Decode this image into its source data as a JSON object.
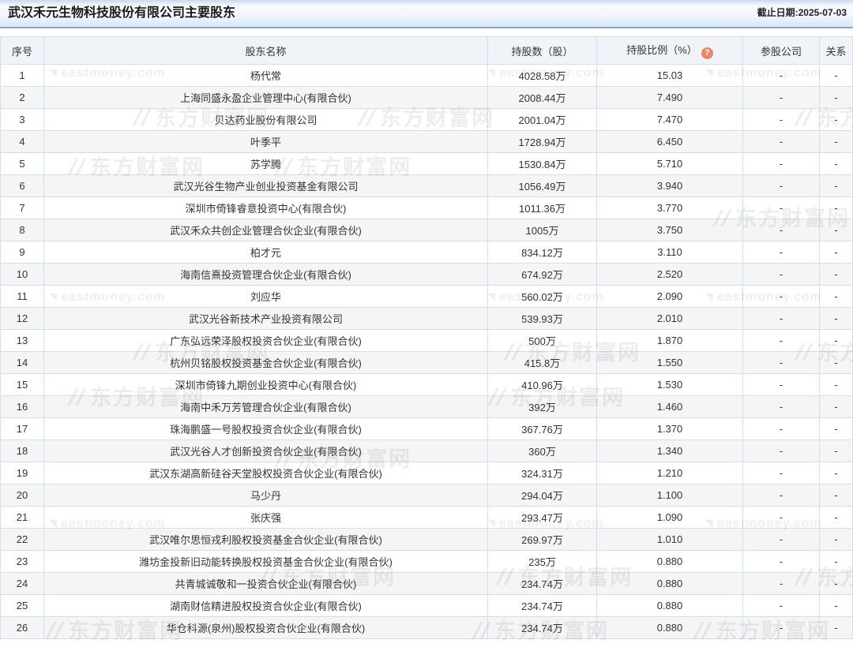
{
  "page": {
    "title": "武汉禾元生物科技股份有限公司主要股东",
    "as_of": "截止日期:2025-07-03"
  },
  "watermark": {
    "brand_en": "eastmoney.com",
    "brand_cn": "东方财富网"
  },
  "colors": {
    "title_border": "#84a7ca",
    "table_border": "#cfe1f0",
    "header_bg": "#f0f4f8",
    "row_alt_bg": "#f5f5f5",
    "help_icon": "#ef8460"
  },
  "help_icon": {
    "glyph": "?"
  },
  "table": {
    "columns": [
      {
        "key": "index",
        "label": "序号"
      },
      {
        "key": "name",
        "label": "股东名称"
      },
      {
        "key": "shares",
        "label": "持股数（股）"
      },
      {
        "key": "ratio",
        "label": "持股比例（%）",
        "has_help": true
      },
      {
        "key": "company",
        "label": "参股公司"
      },
      {
        "key": "relation",
        "label": "关系"
      }
    ],
    "rows": [
      {
        "index": "1",
        "name": "杨代常",
        "shares": "4028.58万",
        "ratio": "15.03",
        "company": "-",
        "relation": "-"
      },
      {
        "index": "2",
        "name": "上海同盛永盈企业管理中心(有限合伙)",
        "shares": "2008.44万",
        "ratio": "7.490",
        "company": "-",
        "relation": "-"
      },
      {
        "index": "3",
        "name": "贝达药业股份有限公司",
        "shares": "2001.04万",
        "ratio": "7.470",
        "company": "-",
        "relation": "-"
      },
      {
        "index": "4",
        "name": "叶季平",
        "shares": "1728.94万",
        "ratio": "6.450",
        "company": "-",
        "relation": "-"
      },
      {
        "index": "5",
        "name": "苏学腾",
        "shares": "1530.84万",
        "ratio": "5.710",
        "company": "-",
        "relation": "-"
      },
      {
        "index": "6",
        "name": "武汉光谷生物产业创业投资基金有限公司",
        "shares": "1056.49万",
        "ratio": "3.940",
        "company": "-",
        "relation": "-"
      },
      {
        "index": "7",
        "name": "深圳市倚锋睿意投资中心(有限合伙)",
        "shares": "1011.36万",
        "ratio": "3.770",
        "company": "-",
        "relation": "-"
      },
      {
        "index": "8",
        "name": "武汉禾众共创企业管理合伙企业(有限合伙)",
        "shares": "1005万",
        "ratio": "3.750",
        "company": "-",
        "relation": "-"
      },
      {
        "index": "9",
        "name": "柏才元",
        "shares": "834.12万",
        "ratio": "3.110",
        "company": "-",
        "relation": "-"
      },
      {
        "index": "10",
        "name": "海南信熹投资管理合伙企业(有限合伙)",
        "shares": "674.92万",
        "ratio": "2.520",
        "company": "-",
        "relation": "-"
      },
      {
        "index": "11",
        "name": "刘应华",
        "shares": "560.02万",
        "ratio": "2.090",
        "company": "-",
        "relation": "-"
      },
      {
        "index": "12",
        "name": "武汉光谷新技术产业投资有限公司",
        "shares": "539.93万",
        "ratio": "2.010",
        "company": "-",
        "relation": "-"
      },
      {
        "index": "13",
        "name": "广东弘远荣泽股权投资合伙企业(有限合伙)",
        "shares": "500万",
        "ratio": "1.870",
        "company": "-",
        "relation": "-"
      },
      {
        "index": "14",
        "name": "杭州贝铭股权投资基金合伙企业(有限合伙)",
        "shares": "415.8万",
        "ratio": "1.550",
        "company": "-",
        "relation": "-"
      },
      {
        "index": "15",
        "name": "深圳市倚锋九期创业投资中心(有限合伙)",
        "shares": "410.96万",
        "ratio": "1.530",
        "company": "-",
        "relation": "-"
      },
      {
        "index": "16",
        "name": "海南中禾万芳管理合伙企业(有限合伙)",
        "shares": "392万",
        "ratio": "1.460",
        "company": "-",
        "relation": "-"
      },
      {
        "index": "17",
        "name": "珠海鹏盛一号股权投资合伙企业(有限合伙)",
        "shares": "367.76万",
        "ratio": "1.370",
        "company": "-",
        "relation": "-"
      },
      {
        "index": "18",
        "name": "武汉光谷人才创新投资合伙企业(有限合伙)",
        "shares": "360万",
        "ratio": "1.340",
        "company": "-",
        "relation": "-"
      },
      {
        "index": "19",
        "name": "武汉东湖高新硅谷天堂股权投资合伙企业(有限合伙)",
        "shares": "324.31万",
        "ratio": "1.210",
        "company": "-",
        "relation": "-"
      },
      {
        "index": "20",
        "name": "马少丹",
        "shares": "294.04万",
        "ratio": "1.100",
        "company": "-",
        "relation": "-"
      },
      {
        "index": "21",
        "name": "张庆强",
        "shares": "293.47万",
        "ratio": "1.090",
        "company": "-",
        "relation": "-"
      },
      {
        "index": "22",
        "name": "武汉唯尔思恒戎利股权投资基金合伙企业(有限合伙)",
        "shares": "269.97万",
        "ratio": "1.010",
        "company": "-",
        "relation": "-"
      },
      {
        "index": "23",
        "name": "潍坊金投新旧动能转换股权投资基金合伙企业(有限合伙)",
        "shares": "235万",
        "ratio": "0.880",
        "company": "-",
        "relation": "-"
      },
      {
        "index": "24",
        "name": "共青城诚敬和一投资合伙企业(有限合伙)",
        "shares": "234.74万",
        "ratio": "0.880",
        "company": "-",
        "relation": "-"
      },
      {
        "index": "25",
        "name": "湖南财信精进股权投资合伙企业(有限合伙)",
        "shares": "234.74万",
        "ratio": "0.880",
        "company": "-",
        "relation": "-"
      },
      {
        "index": "26",
        "name": "华仓科源(泉州)股权投资合伙企业(有限合伙)",
        "shares": "234.74万",
        "ratio": "0.880",
        "company": "-",
        "relation": "-"
      }
    ]
  }
}
